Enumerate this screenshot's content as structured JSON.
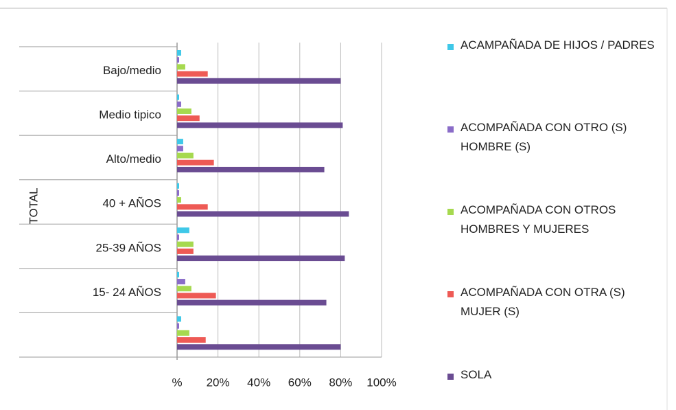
{
  "chart_data": {
    "type": "barh",
    "group_label": "TOTAL",
    "categories": [
      "Bajo/medio",
      "Medio tipico",
      "Alto/medio",
      "40 + AÑOS",
      "25-39 AÑOS",
      "15- 24 AÑOS",
      null
    ],
    "series": [
      {
        "name": "ACAMPAÑADA DE HIJOS / PADRES",
        "color": "#3fc8e8",
        "values": [
          2,
          1,
          3,
          1,
          6,
          1,
          2
        ]
      },
      {
        "name": "ACOMPAÑADA CON OTRO (S) HOMBRE (S)",
        "color": "#8a6cc8",
        "values": [
          1,
          2,
          3,
          1,
          1,
          4,
          1
        ]
      },
      {
        "name": "ACOMPAÑADA CON OTROS HOMBRES Y MUJERES",
        "color": "#a6d94f",
        "values": [
          4,
          7,
          8,
          2,
          8,
          7,
          6
        ]
      },
      {
        "name": "ACOMPAÑADA CON OTRA (S) MUJER (S)",
        "color": "#ee5a55",
        "values": [
          15,
          11,
          18,
          15,
          8,
          19,
          14
        ]
      },
      {
        "name": "SOLA",
        "color": "#6a4c92",
        "values": [
          80,
          81,
          72,
          84,
          82,
          73,
          80
        ]
      }
    ],
    "xlim": [
      0,
      100
    ],
    "xticks": [
      {
        "value": 0,
        "label": "%"
      },
      {
        "value": 20,
        "label": "20%"
      },
      {
        "value": 40,
        "label": "40%"
      },
      {
        "value": 60,
        "label": "60%"
      },
      {
        "value": 80,
        "label": "80%"
      },
      {
        "value": 100,
        "label": "100%"
      }
    ],
    "grid": true
  }
}
